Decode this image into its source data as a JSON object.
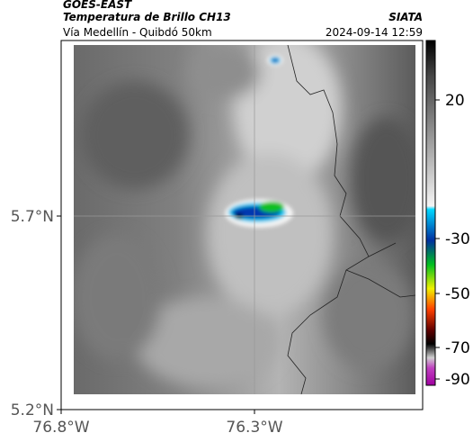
{
  "header": {
    "source": "GOES-EAST",
    "title": "Temperatura de Brillo CH13",
    "org": "SIATA",
    "subtitle": "Vía Medellín - Quibdó 50km",
    "timestamp": "2024-09-14 12:59"
  },
  "map": {
    "xticks": [
      "76.8°W",
      "76.3°W"
    ],
    "yticks": [
      "5.7°N",
      "5.2°N"
    ]
  },
  "colorbar": {
    "ticks": [
      20,
      -30,
      -50,
      -70,
      -90
    ]
  }
}
